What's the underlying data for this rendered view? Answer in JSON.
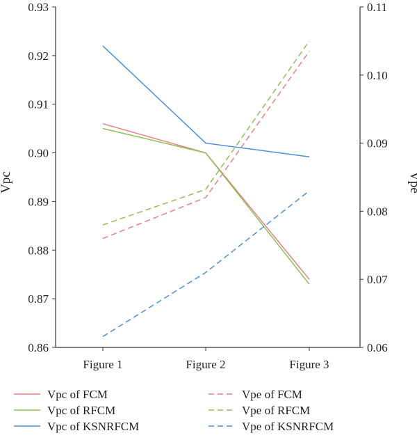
{
  "chart_data": {
    "type": "line",
    "categories": [
      "Figure 1",
      "Figure 2",
      "Figure 3"
    ],
    "y_left": {
      "label": "Vpc",
      "lim": [
        0.86,
        0.93
      ],
      "ticks": [
        "0.86",
        "0.87",
        "0.88",
        "0.89",
        "0.90",
        "0.91",
        "0.92",
        "0.93"
      ]
    },
    "y_right": {
      "label": "Vpe",
      "lim": [
        0.06,
        0.11
      ],
      "ticks": [
        "0.06",
        "0.07",
        "0.08",
        "0.09",
        "0.10",
        "0.11"
      ]
    },
    "grid": false,
    "legend_position": "bottom",
    "series": [
      {
        "name": "Vpc of FCM",
        "axis": "left",
        "dash": false,
        "color": "#e8827e",
        "values": [
          0.906,
          0.9,
          0.874
        ]
      },
      {
        "name": "Vpe of FCM",
        "axis": "right",
        "dash": true,
        "color": "#e8827e",
        "values": [
          0.076,
          0.082,
          0.1035
        ]
      },
      {
        "name": "Vpc of RFCM",
        "axis": "left",
        "dash": false,
        "color": "#8cc152",
        "values": [
          0.905,
          0.9,
          0.873
        ]
      },
      {
        "name": "Vpe of RFCM",
        "axis": "right",
        "dash": true,
        "color": "#8cc152",
        "values": [
          0.078,
          0.0832,
          0.105
        ]
      },
      {
        "name": "Vpc of KSNRFCM",
        "axis": "left",
        "dash": false,
        "color": "#4a90d9",
        "values": [
          0.922,
          0.902,
          0.8992
        ]
      },
      {
        "name": "Vpe of KSNRFCM",
        "axis": "right",
        "dash": true,
        "color": "#4a90d9",
        "values": [
          0.0616,
          0.071,
          0.083
        ]
      }
    ]
  }
}
